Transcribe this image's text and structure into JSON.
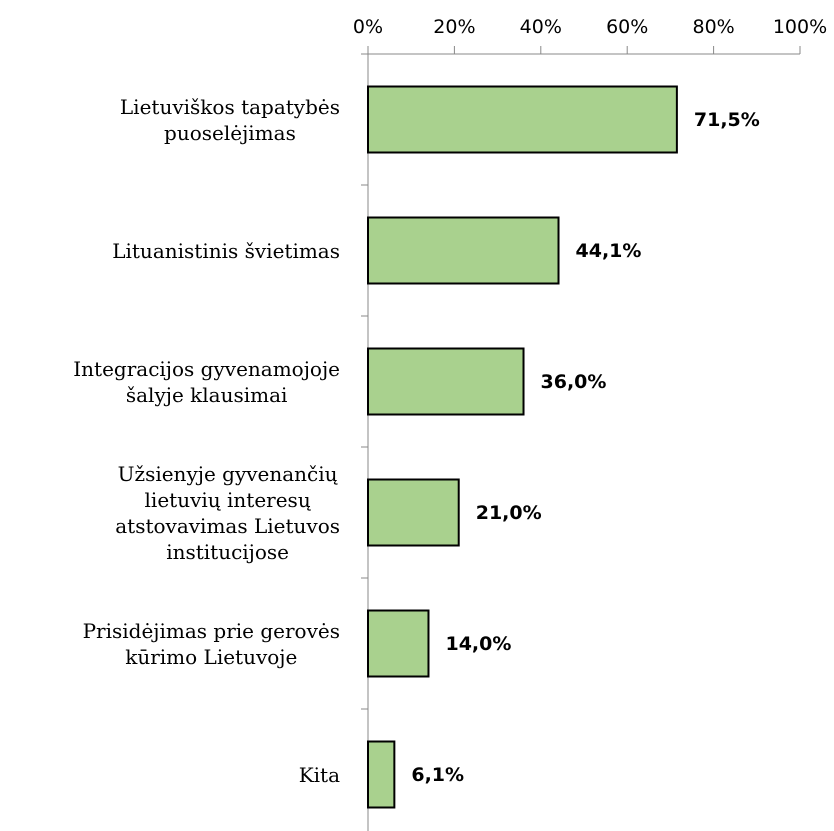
{
  "chart_data": {
    "type": "bar",
    "orientation": "horizontal",
    "categories": [
      "Lietuviškos tapatybės\npuoselėjimas",
      "Lituanistinis švietimas",
      "Integracijos gyvenamojoje\nšalyje klausimai",
      "Užsienyje gyvenančių\nlietuvių interesų\natstovavimas Lietuvos\ninstitucijose",
      "Prisidėjimas prie gerovės\nkūrimo Lietuvoje",
      "Kita"
    ],
    "values": [
      71.5,
      44.1,
      36.0,
      21.0,
      14.0,
      6.1
    ],
    "value_labels": [
      "71,5%",
      "44,1%",
      "36,0%",
      "21,0%",
      "14,0%",
      "6,1%"
    ],
    "color": "#a9d18e",
    "xlim": [
      0,
      100
    ],
    "xticks": [
      {
        "value": 0,
        "label": "0%"
      },
      {
        "value": 20,
        "label": "20%"
      },
      {
        "value": 40,
        "label": "40%"
      },
      {
        "value": 60,
        "label": "60%"
      },
      {
        "value": 80,
        "label": "80%"
      },
      {
        "value": 100,
        "label": "100%"
      }
    ],
    "grid": false
  }
}
